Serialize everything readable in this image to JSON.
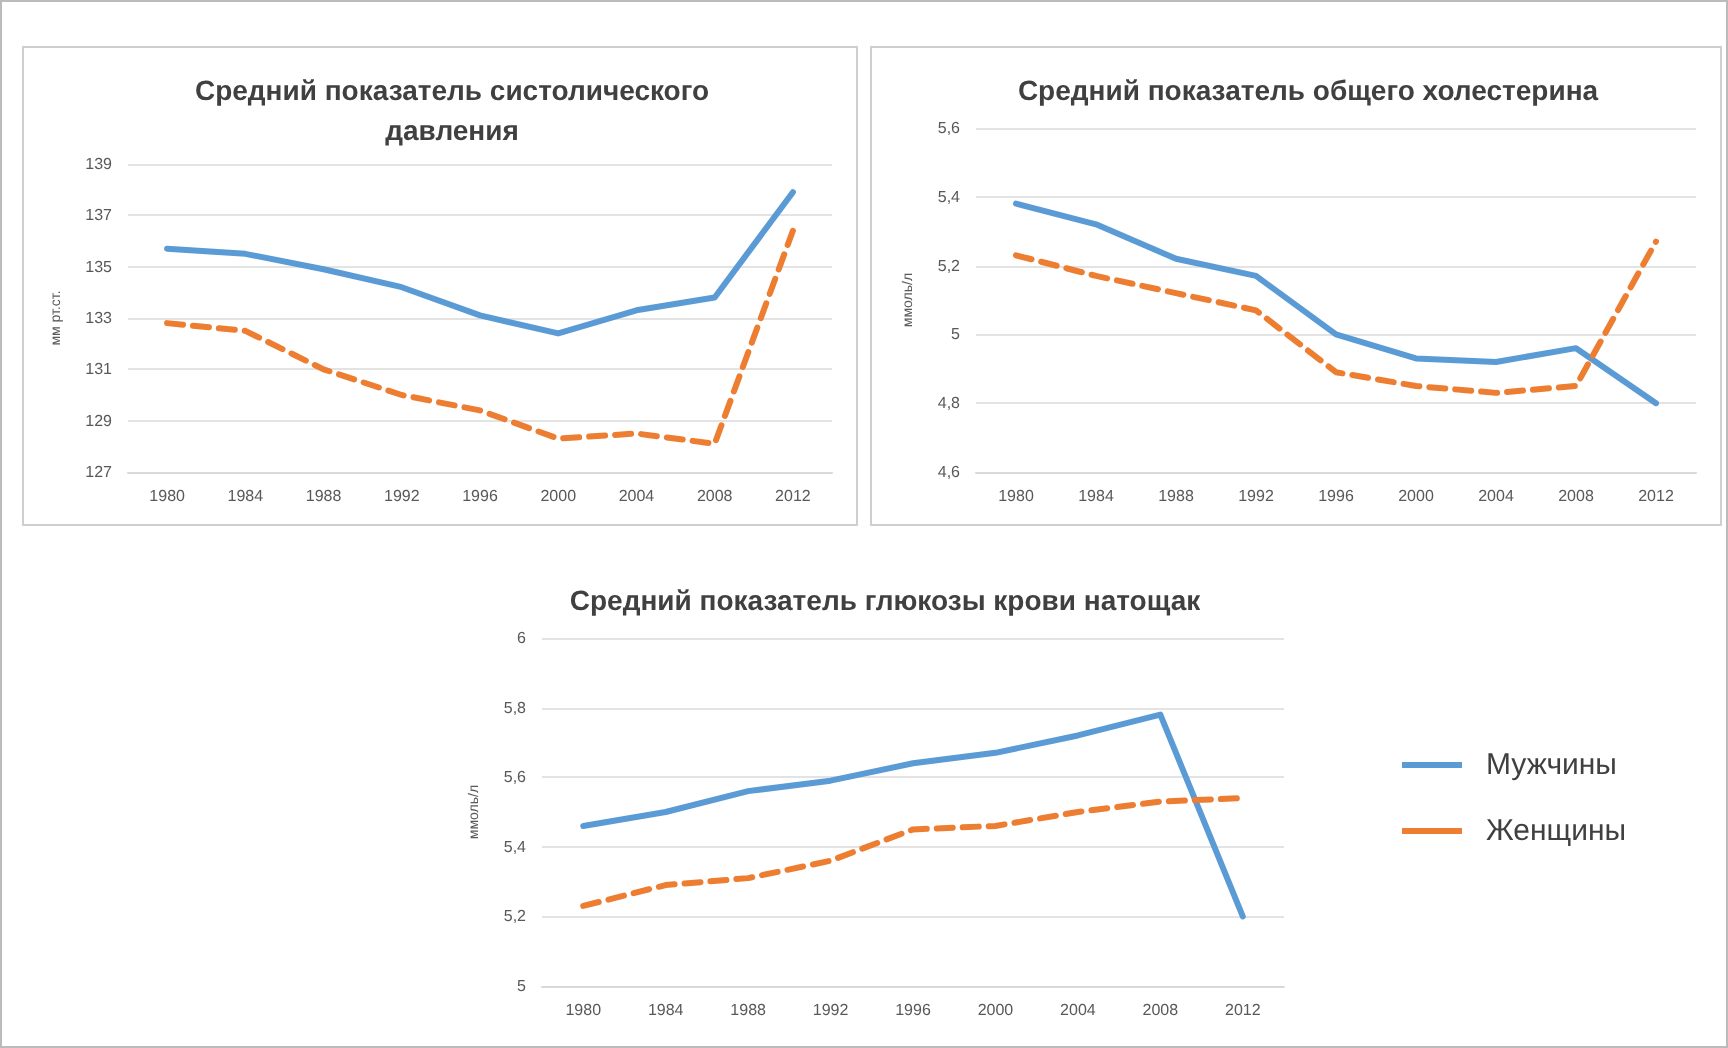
{
  "chart_data": [
    {
      "type": "line",
      "title": "Средний показатель систолического\nдавления",
      "ylabel": "мм рт.ст.",
      "categories": [
        "1980",
        "1984",
        "1988",
        "1992",
        "1996",
        "2000",
        "2004",
        "2008",
        "2012"
      ],
      "ylim": [
        127,
        139
      ],
      "yticks": [
        127,
        129,
        131,
        133,
        135,
        137,
        139
      ],
      "grid": "y",
      "legend": false,
      "marker": "none",
      "series": [
        {
          "color": "#5b9bd5",
          "line_style": "solid",
          "values": [
            135.7,
            135.5,
            134.9,
            134.2,
            133.1,
            132.4,
            133.3,
            133.8,
            137.9
          ]
        },
        {
          "color": "#ed7d31",
          "line_style": "dashed",
          "values": [
            132.8,
            132.5,
            131.0,
            130.0,
            129.4,
            128.3,
            128.5,
            128.1,
            136.4
          ]
        }
      ]
    },
    {
      "type": "line",
      "title": "Средний показатель общего холестерина",
      "ylabel": "ммоль/л",
      "categories": [
        "1980",
        "1984",
        "1988",
        "1992",
        "1996",
        "2000",
        "2004",
        "2008",
        "2012"
      ],
      "ylim": [
        4.6,
        5.6
      ],
      "yticks": [
        {
          "value": 4.6,
          "label": "4,6"
        },
        {
          "value": 4.8,
          "label": "4,8"
        },
        5,
        {
          "value": 5.2,
          "label": "5,2"
        },
        {
          "value": 5.4,
          "label": "5,4"
        },
        {
          "value": 5.6,
          "label": "5,6"
        }
      ],
      "grid": "y",
      "legend": false,
      "marker": "none",
      "series": [
        {
          "color": "#5b9bd5",
          "line_style": "solid",
          "values": [
            5.38,
            5.32,
            5.22,
            5.17,
            5.0,
            4.93,
            4.92,
            4.96,
            4.8
          ]
        },
        {
          "color": "#ed7d31",
          "line_style": "dashed",
          "values": [
            5.23,
            5.17,
            5.12,
            5.07,
            4.89,
            4.85,
            4.83,
            4.85,
            5.27
          ]
        }
      ]
    },
    {
      "type": "line",
      "title": "Средний показатель глюкозы крови натощак",
      "ylabel": "ммоль/л",
      "categories": [
        "1980",
        "1984",
        "1988",
        "1992",
        "1996",
        "2000",
        "2004",
        "2008",
        "2012"
      ],
      "ylim": [
        5,
        6
      ],
      "yticks": [
        5,
        {
          "value": 5.2,
          "label": "5,2"
        },
        {
          "value": 5.4,
          "label": "5,4"
        },
        {
          "value": 5.6,
          "label": "5,6"
        },
        {
          "value": 5.8,
          "label": "5,8"
        },
        6
      ],
      "grid": "y",
      "legend": "right",
      "marker": "none",
      "series": [
        {
          "name": "Мужчины",
          "color": "#5b9bd5",
          "line_style": "solid",
          "values": [
            5.46,
            5.5,
            5.56,
            5.59,
            5.64,
            5.67,
            5.72,
            5.78,
            5.2
          ]
        },
        {
          "name": "Женщины",
          "color": "#ed7d31",
          "line_style": "dashed",
          "values": [
            5.23,
            5.29,
            5.31,
            5.36,
            5.45,
            5.46,
            5.5,
            5.53,
            5.54
          ]
        }
      ]
    }
  ]
}
